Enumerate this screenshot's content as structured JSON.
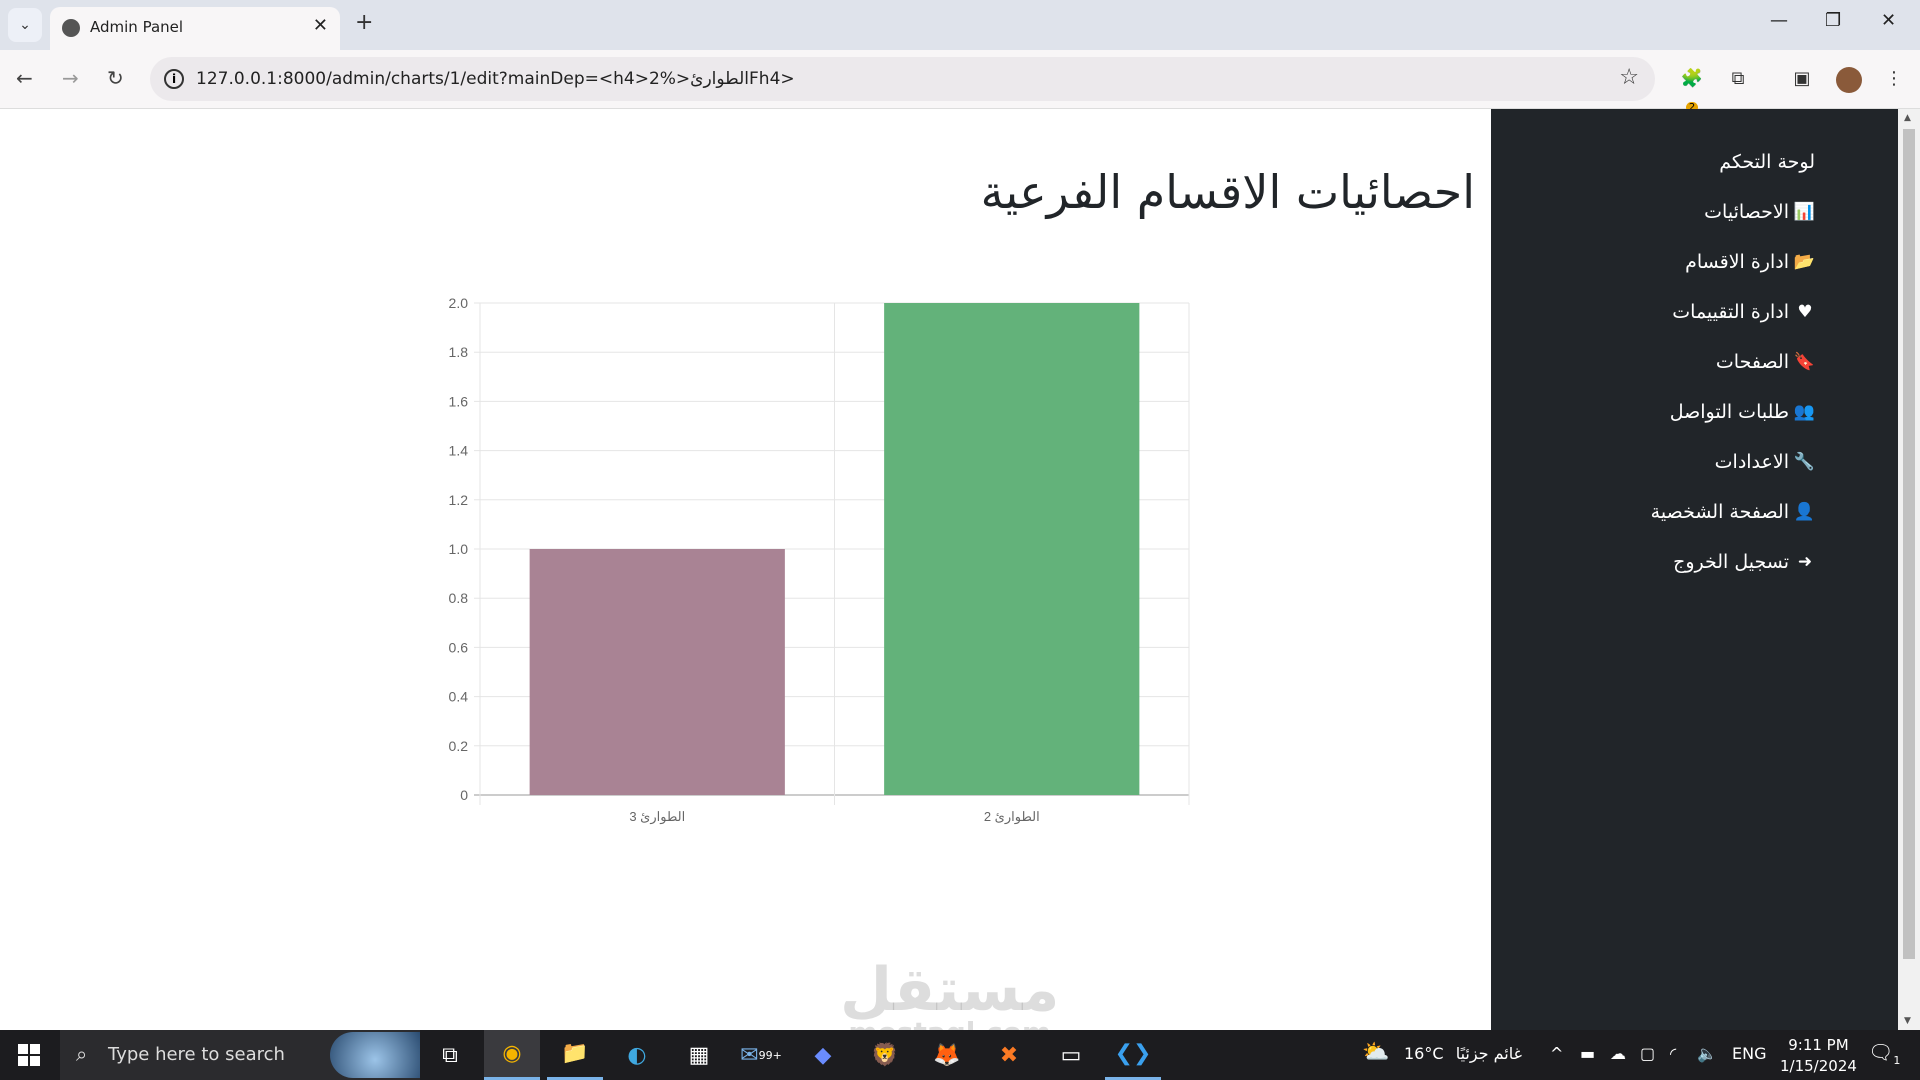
{
  "browser": {
    "tab_title": "Admin Panel",
    "url": "127.0.0.1:8000/admin/charts/1/edit?mainDep=<h4>2%>الطوارئFh4>",
    "extension_badge": "2"
  },
  "page": {
    "title": "احصائيات الاقسام الفرعية"
  },
  "sidebar": {
    "items": [
      {
        "label": "لوحة التحكم",
        "icon": ""
      },
      {
        "label": "الاحصائيات",
        "icon": "bar-chart-icon"
      },
      {
        "label": "ادارة الاقسام",
        "icon": "folder-open-icon"
      },
      {
        "label": "ادارة التقييمات",
        "icon": "heart-icon"
      },
      {
        "label": "الصفحات",
        "icon": "bookmark-icon"
      },
      {
        "label": "طلبات التواصل",
        "icon": "users-icon"
      },
      {
        "label": "الاعدادات",
        "icon": "wrench-icon"
      },
      {
        "label": "الصفحة الشخصية",
        "icon": "user-icon"
      },
      {
        "label": "تسجيل الخروج",
        "icon": "sign-out-icon"
      }
    ]
  },
  "chart_data": {
    "type": "bar",
    "categories": [
      "الطوارئ 3",
      "الطوارئ 2"
    ],
    "values": [
      1,
      2
    ],
    "colors": [
      "#a98394",
      "#63b27a"
    ],
    "ylim": [
      0,
      2
    ],
    "yticks": [
      "0",
      "0.2",
      "0.4",
      "0.6",
      "0.8",
      "1.0",
      "1.2",
      "1.4",
      "1.6",
      "1.8",
      "2.0"
    ],
    "grid": true
  },
  "watermark": {
    "arabic": "مستقل",
    "latin": "mostaql.com"
  },
  "taskbar": {
    "search_placeholder": "Type here to search",
    "mail_badge": "99+",
    "weather_temp": "16°C",
    "weather_text": "غائم جزئيًا",
    "language": "ENG",
    "time": "9:11 PM",
    "date": "1/15/2024",
    "notification_count": "1"
  }
}
